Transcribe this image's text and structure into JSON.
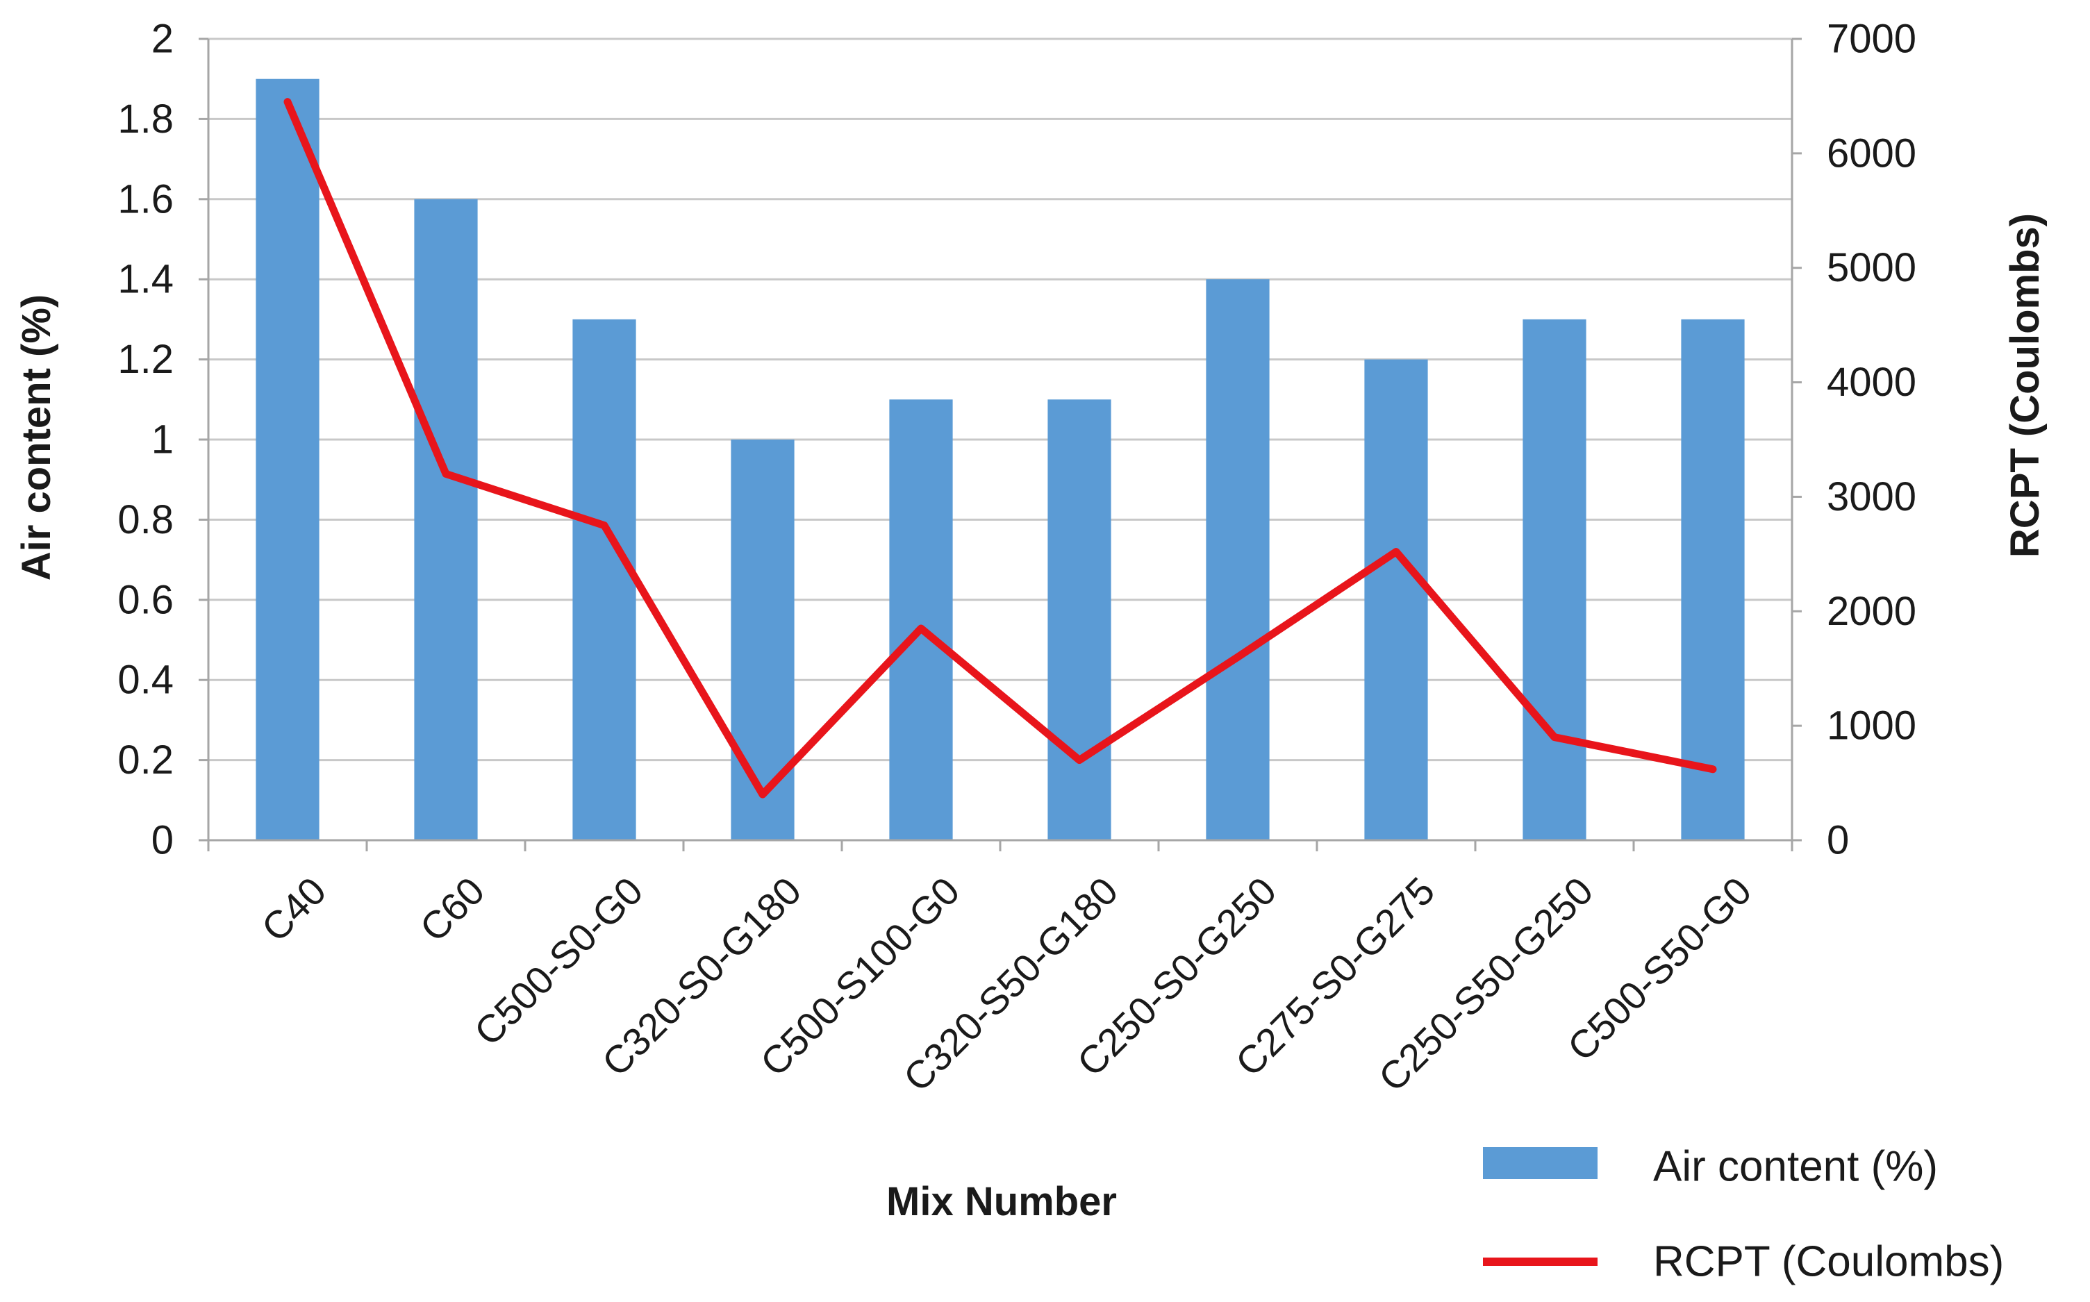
{
  "chart_data": {
    "type": "bar",
    "categories": [
      "C40",
      "C60",
      "C500-S0-G0",
      "C320-S0-G180",
      "C500-S100-G0",
      "C320-S50-G180",
      "C250-S0-G250",
      "C275-S0-G275",
      "C250-S50-G250",
      "C500-S50-G0"
    ],
    "series": [
      {
        "name": "Air content (%)",
        "type": "bar",
        "axis": "left",
        "color": "#5b9bd5",
        "values": [
          1.9,
          1.6,
          1.3,
          1.0,
          1.1,
          1.1,
          1.4,
          1.2,
          1.3,
          1.3
        ]
      },
      {
        "name": "RCPT (Coulombs)",
        "type": "line",
        "axis": "right",
        "color": "#e8151b",
        "values": [
          6450,
          3200,
          2750,
          400,
          1850,
          700,
          1600,
          2520,
          900,
          620
        ]
      }
    ],
    "xlabel": "Mix Number",
    "ylabel": "Air content (%)",
    "y2label": "RCPT (Coulombs)",
    "ylim": [
      0,
      2
    ],
    "y2lim": [
      0,
      7000
    ],
    "yticks": [
      "0",
      "0.2",
      "0.4",
      "0.6",
      "0.8",
      "1",
      "1.2",
      "1.4",
      "1.6",
      "1.8",
      "2"
    ],
    "y2ticks": [
      "0",
      "1000",
      "2000",
      "3000",
      "4000",
      "5000",
      "6000",
      "7000"
    ],
    "grid": true,
    "legend_position": "bottom-right"
  }
}
